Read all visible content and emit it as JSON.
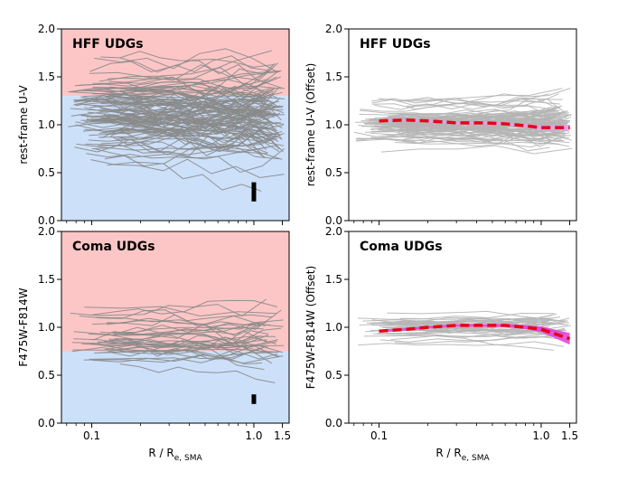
{
  "chart_data": [
    {
      "type": "line",
      "panel": "top-left",
      "title": "HFF UDGs",
      "ylabel": "rest-frame U-V",
      "xlabel": "",
      "xscale": "log",
      "xlim": [
        0.065,
        1.65
      ],
      "ylim": [
        0.0,
        2.0
      ],
      "xticks": [
        0.1,
        1.0,
        1.5
      ],
      "xtick_labels": [
        "",
        "",
        ""
      ],
      "yticks": [
        0.0,
        0.5,
        1.0,
        1.5,
        2.0
      ],
      "ytick_labels": [
        "0.0",
        "0.5",
        "1.0",
        "1.5",
        "2.0"
      ],
      "background_bands": [
        {
          "ymin": 1.3,
          "ymax": 2.0,
          "color": "#fdc6c6"
        },
        {
          "ymin": 0.0,
          "ymax": 1.3,
          "color": "#cce0fa"
        }
      ],
      "profile_color": "#8a8a8a",
      "profile_count": 120,
      "profile_center": 1.12,
      "profile_spread": 0.22,
      "profile_seed": 11,
      "error_bar": {
        "x": 1.0,
        "ymin": 0.2,
        "ymax": 0.4,
        "color": "#000000"
      }
    },
    {
      "type": "line",
      "panel": "top-right",
      "title": "HFF UDGs",
      "ylabel": "rest-frame U-V (Offset)",
      "xlabel": "",
      "xscale": "log",
      "xlim": [
        0.065,
        1.65
      ],
      "ylim": [
        0.0,
        2.0
      ],
      "xticks": [
        0.1,
        1.0,
        1.5
      ],
      "xtick_labels": [
        "",
        "",
        ""
      ],
      "yticks": [
        0.0,
        0.5,
        1.0,
        1.5,
        2.0
      ],
      "ytick_labels": [
        "0.0",
        "0.5",
        "1.0",
        "1.5",
        "2.0"
      ],
      "profile_color": "#b5b5b5",
      "profile_count": 110,
      "profile_center": 1.0,
      "profile_spread": 0.1,
      "profile_seed": 23,
      "median": {
        "x": [
          0.1,
          0.15,
          0.2,
          0.3,
          0.45,
          0.6,
          0.8,
          1.0,
          1.5
        ],
        "y": [
          1.04,
          1.05,
          1.04,
          1.02,
          1.02,
          1.01,
          0.99,
          0.97,
          0.97
        ],
        "color": "#e8001a",
        "band_color": "#e2a0e6",
        "band_halfwidth": [
          0.015,
          0.015,
          0.015,
          0.015,
          0.015,
          0.015,
          0.02,
          0.025,
          0.03
        ]
      }
    },
    {
      "type": "line",
      "panel": "bottom-left",
      "title": "Coma UDGs",
      "ylabel": "F475W-F814W",
      "xlabel": "R / R",
      "xlabel_sub": "e, SMA",
      "xscale": "log",
      "xlim": [
        0.065,
        1.65
      ],
      "ylim": [
        0.0,
        2.0
      ],
      "xticks": [
        0.1,
        1.0,
        1.5
      ],
      "xtick_labels": [
        "0.1",
        "1.0",
        "1.5"
      ],
      "yticks": [
        0.0,
        0.5,
        1.0,
        1.5,
        2.0
      ],
      "ytick_labels": [
        "0.0",
        "0.5",
        "1.0",
        "1.5",
        "2.0"
      ],
      "background_bands": [
        {
          "ymin": 0.75,
          "ymax": 2.0,
          "color": "#fdc6c6"
        },
        {
          "ymin": 0.0,
          "ymax": 0.75,
          "color": "#cce0fa"
        }
      ],
      "profile_color": "#8a8a8a",
      "profile_count": 40,
      "profile_center": 0.85,
      "profile_spread": 0.15,
      "profile_seed": 37,
      "error_bar": {
        "x": 1.0,
        "ymin": 0.2,
        "ymax": 0.3,
        "color": "#000000"
      }
    },
    {
      "type": "line",
      "panel": "bottom-right",
      "title": "Coma UDGs",
      "ylabel": "F475W-F814W (Offset)",
      "xlabel": "R / R",
      "xlabel_sub": "e, SMA",
      "xscale": "log",
      "xlim": [
        0.065,
        1.65
      ],
      "ylim": [
        0.0,
        2.0
      ],
      "xticks": [
        0.1,
        1.0,
        1.5
      ],
      "xtick_labels": [
        "0.1",
        "1.0",
        "1.5"
      ],
      "yticks": [
        0.0,
        0.5,
        1.0,
        1.5,
        2.0
      ],
      "ytick_labels": [
        "0.0",
        "0.5",
        "1.0",
        "1.5",
        "2.0"
      ],
      "profile_color": "#b5b5b5",
      "profile_count": 40,
      "profile_center": 1.0,
      "profile_spread": 0.07,
      "profile_seed": 53,
      "median": {
        "x": [
          0.1,
          0.15,
          0.2,
          0.3,
          0.45,
          0.6,
          0.8,
          1.0,
          1.5
        ],
        "y": [
          0.96,
          0.98,
          1.0,
          1.02,
          1.02,
          1.02,
          1.0,
          0.98,
          0.88
        ],
        "color": "#e8001a",
        "band_color": "#e23ad8",
        "band_halfwidth": [
          0.012,
          0.012,
          0.012,
          0.012,
          0.012,
          0.015,
          0.02,
          0.03,
          0.06
        ]
      }
    }
  ]
}
